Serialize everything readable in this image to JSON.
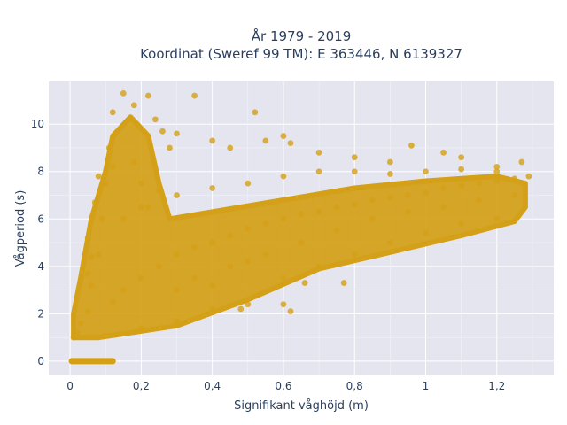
{
  "chart_data": {
    "type": "scatter",
    "title_line1": "År 1979 - 2019",
    "title_line2": "Koordinat (Sweref 99 TM): E 363446, N 6139327",
    "xlabel": "Signifikant våghöjd (m)",
    "ylabel": "Vågperiod (s)",
    "xlim": [
      -0.06,
      1.36
    ],
    "ylim": [
      -0.6,
      11.8
    ],
    "x_ticks": [
      {
        "value": 0,
        "label": "0"
      },
      {
        "value": 0.2,
        "label": "0,2"
      },
      {
        "value": 0.4,
        "label": "0,4"
      },
      {
        "value": 0.6,
        "label": "0,6"
      },
      {
        "value": 0.8,
        "label": "0,8"
      },
      {
        "value": 1.0,
        "label": "1"
      },
      {
        "value": 1.2,
        "label": "1,2"
      }
    ],
    "y_ticks": [
      {
        "value": 0,
        "label": "0"
      },
      {
        "value": 2,
        "label": "2"
      },
      {
        "value": 4,
        "label": "4"
      },
      {
        "value": 6,
        "label": "6"
      },
      {
        "value": 8,
        "label": "8"
      },
      {
        "value": 10,
        "label": "10"
      }
    ],
    "grid": true,
    "legend": "none",
    "marker_color": "#D4A017",
    "plot_background": "#E5E5F0",
    "points": [
      [
        0.005,
        0
      ],
      [
        0.02,
        0
      ],
      [
        0.04,
        0
      ],
      [
        0.06,
        0
      ],
      [
        0.08,
        0
      ],
      [
        0.1,
        0
      ],
      [
        0.12,
        0
      ],
      [
        0.01,
        1.0
      ],
      [
        0.02,
        1.2
      ],
      [
        0.03,
        1.6
      ],
      [
        0.05,
        2.1
      ],
      [
        0.06,
        3.2
      ],
      [
        0.08,
        4.5
      ],
      [
        0.09,
        6.0
      ],
      [
        0.1,
        7.5
      ],
      [
        0.11,
        9.0
      ],
      [
        0.12,
        10.5
      ],
      [
        0.15,
        11.3
      ],
      [
        0.18,
        10.8
      ],
      [
        0.22,
        11.2
      ],
      [
        0.24,
        10.2
      ],
      [
        0.26,
        9.7
      ],
      [
        0.28,
        9.0
      ],
      [
        0.3,
        9.6
      ],
      [
        0.35,
        11.2
      ],
      [
        0.4,
        9.3
      ],
      [
        0.45,
        9.0
      ],
      [
        0.52,
        10.5
      ],
      [
        0.55,
        9.3
      ],
      [
        0.6,
        9.5
      ],
      [
        0.62,
        9.2
      ],
      [
        0.7,
        8.8
      ],
      [
        0.8,
        8.6
      ],
      [
        0.9,
        8.4
      ],
      [
        0.96,
        9.1
      ],
      [
        1.05,
        8.8
      ],
      [
        1.1,
        8.6
      ],
      [
        1.2,
        8.2
      ],
      [
        1.27,
        8.4
      ],
      [
        1.29,
        7.8
      ],
      [
        0.1,
        1.1
      ],
      [
        0.2,
        1.4
      ],
      [
        0.3,
        1.7
      ],
      [
        0.4,
        2.2
      ],
      [
        0.5,
        2.4
      ],
      [
        0.6,
        3.5
      ],
      [
        0.7,
        4.0
      ],
      [
        0.8,
        4.5
      ],
      [
        0.9,
        5.0
      ],
      [
        1.0,
        5.4
      ],
      [
        1.1,
        5.8
      ],
      [
        1.2,
        6.0
      ],
      [
        0.44,
        2.3
      ],
      [
        0.48,
        2.2
      ],
      [
        0.6,
        2.4
      ],
      [
        0.62,
        2.1
      ],
      [
        0.66,
        3.3
      ],
      [
        0.77,
        3.3
      ],
      [
        0.05,
        3.7
      ],
      [
        0.06,
        4.4
      ],
      [
        0.05,
        5.2
      ],
      [
        0.07,
        6.7
      ],
      [
        0.08,
        7.8
      ],
      [
        0.12,
        8.2
      ],
      [
        0.18,
        8.4
      ],
      [
        0.2,
        7.5
      ],
      [
        0.25,
        7.2
      ],
      [
        0.22,
        6.5
      ],
      [
        0.12,
        2.5
      ],
      [
        0.15,
        3.0
      ],
      [
        0.2,
        3.5
      ],
      [
        0.25,
        4.0
      ],
      [
        0.3,
        4.5
      ],
      [
        0.35,
        4.8
      ],
      [
        0.4,
        5.0
      ],
      [
        0.45,
        5.3
      ],
      [
        0.5,
        5.6
      ],
      [
        0.55,
        5.8
      ],
      [
        0.6,
        6.0
      ],
      [
        0.65,
        6.2
      ],
      [
        0.7,
        6.3
      ],
      [
        0.75,
        6.5
      ],
      [
        0.8,
        6.6
      ],
      [
        0.85,
        6.8
      ],
      [
        0.9,
        6.9
      ],
      [
        0.95,
        7.0
      ],
      [
        1.0,
        7.1
      ],
      [
        1.05,
        7.3
      ],
      [
        1.1,
        7.4
      ],
      [
        1.15,
        7.5
      ],
      [
        1.2,
        7.6
      ],
      [
        1.25,
        7.7
      ],
      [
        0.15,
        6.0
      ],
      [
        0.2,
        6.5
      ],
      [
        0.3,
        7.0
      ],
      [
        0.4,
        7.3
      ],
      [
        0.5,
        7.5
      ],
      [
        0.6,
        7.8
      ],
      [
        0.7,
        8.0
      ],
      [
        0.8,
        8.0
      ],
      [
        0.9,
        7.9
      ],
      [
        1.0,
        8.0
      ],
      [
        1.1,
        8.1
      ],
      [
        1.2,
        8.0
      ],
      [
        0.3,
        3.0
      ],
      [
        0.35,
        3.5
      ],
      [
        0.4,
        3.2
      ],
      [
        0.45,
        4.0
      ],
      [
        0.5,
        4.2
      ],
      [
        0.55,
        4.5
      ],
      [
        0.65,
        5.0
      ],
      [
        0.75,
        5.5
      ],
      [
        0.85,
        6.0
      ],
      [
        0.95,
        6.3
      ],
      [
        1.05,
        6.5
      ],
      [
        1.15,
        6.8
      ],
      [
        1.25,
        7.0
      ]
    ]
  }
}
